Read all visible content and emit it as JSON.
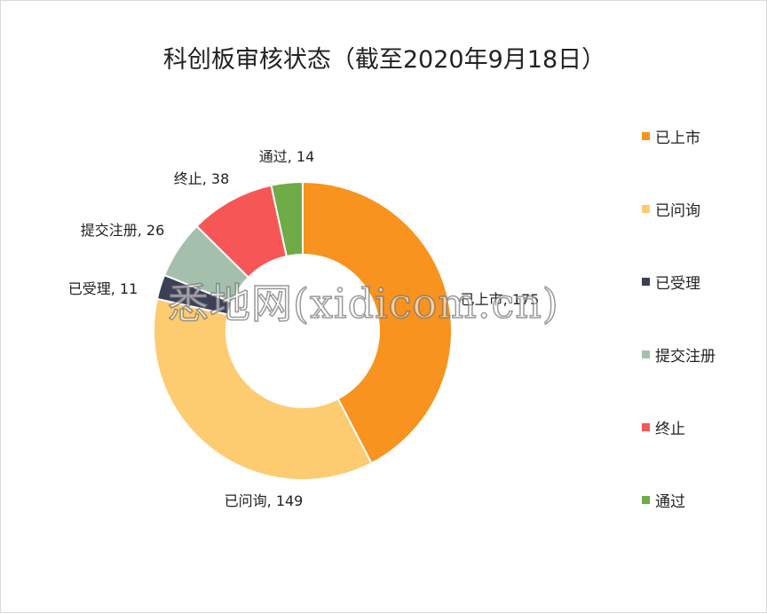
{
  "chart_data": {
    "type": "pie",
    "variant": "donut",
    "title": "科创板审核状态（截至2020年9月18日）",
    "categories": [
      "已上市",
      "已问询",
      "已受理",
      "提交注册",
      "终止",
      "通过"
    ],
    "values": [
      175,
      149,
      11,
      26,
      38,
      14
    ],
    "data_labels": [
      "已上市, 175",
      "已问询, 149",
      "已受理, 11",
      "提交注册, 26",
      "终止, 38",
      "通过, 14"
    ],
    "colors": [
      "#F7931E",
      "#FDCB70",
      "#3C3F58",
      "#A4C0AC",
      "#F75656",
      "#6FAB46"
    ],
    "legend_position": "right",
    "start_angle_deg": 0,
    "direction": "clockwise"
  },
  "watermark": "悉地网(xidicom.cn)"
}
